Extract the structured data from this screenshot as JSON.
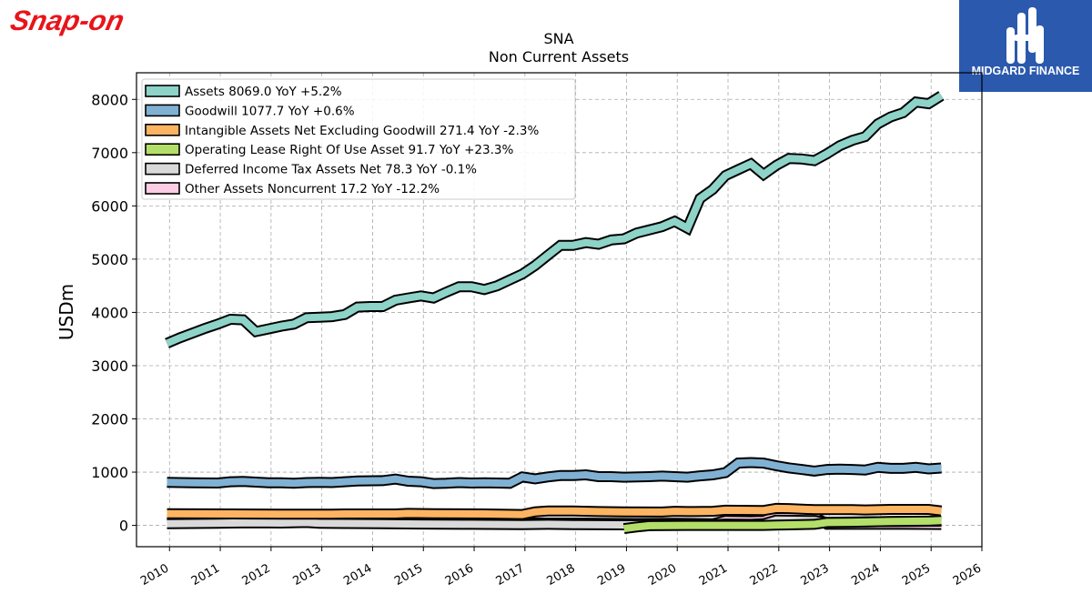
{
  "brand": {
    "left_logo_text": "Snap-on",
    "right_logo_text": "MIDGARD FINANCE",
    "left_logo_color": "#e8141b",
    "right_logo_bg": "#2b59ad"
  },
  "chart_data": {
    "type": "area",
    "title": "SNA",
    "subtitle": "Non Current  Assets",
    "ylabel": "USDm",
    "xlabel": "",
    "xlim": [
      2009.35,
      2026.0
    ],
    "ylim": [
      -400,
      8500
    ],
    "grid": true,
    "legend_position": "top-left",
    "x_ticks": [
      "2010",
      "2011",
      "2012",
      "2013",
      "2014",
      "2015",
      "2016",
      "2017",
      "2018",
      "2019",
      "2020",
      "2021",
      "2022",
      "2023",
      "2024",
      "2025",
      "2026"
    ],
    "y_ticks": [
      "0",
      "1000",
      "2000",
      "3000",
      "4000",
      "5000",
      "6000",
      "7000",
      "8000"
    ],
    "series": [
      {
        "name": "Assets  8069.0 YoY +5.2%",
        "color": "#8dd3c7",
        "points": [
          [
            2009.95,
            3420
          ],
          [
            2010.2,
            3520
          ],
          [
            2010.45,
            3610
          ],
          [
            2010.7,
            3700
          ],
          [
            2010.95,
            3780
          ],
          [
            2011.2,
            3870
          ],
          [
            2011.45,
            3860
          ],
          [
            2011.7,
            3640
          ],
          [
            2011.95,
            3690
          ],
          [
            2012.2,
            3740
          ],
          [
            2012.45,
            3780
          ],
          [
            2012.7,
            3900
          ],
          [
            2012.95,
            3910
          ],
          [
            2013.2,
            3920
          ],
          [
            2013.45,
            3960
          ],
          [
            2013.7,
            4100
          ],
          [
            2013.95,
            4110
          ],
          [
            2014.2,
            4110
          ],
          [
            2014.45,
            4230
          ],
          [
            2014.7,
            4270
          ],
          [
            2014.95,
            4310
          ],
          [
            2015.2,
            4270
          ],
          [
            2015.45,
            4380
          ],
          [
            2015.7,
            4480
          ],
          [
            2015.95,
            4480
          ],
          [
            2016.2,
            4430
          ],
          [
            2016.45,
            4500
          ],
          [
            2016.7,
            4610
          ],
          [
            2016.95,
            4720
          ],
          [
            2017.2,
            4880
          ],
          [
            2017.45,
            5070
          ],
          [
            2017.7,
            5260
          ],
          [
            2017.95,
            5260
          ],
          [
            2018.2,
            5310
          ],
          [
            2018.45,
            5280
          ],
          [
            2018.7,
            5360
          ],
          [
            2018.95,
            5380
          ],
          [
            2019.2,
            5490
          ],
          [
            2019.45,
            5550
          ],
          [
            2019.7,
            5610
          ],
          [
            2019.95,
            5710
          ],
          [
            2020.2,
            5580
          ],
          [
            2020.45,
            6140
          ],
          [
            2020.7,
            6310
          ],
          [
            2020.95,
            6570
          ],
          [
            2021.2,
            6680
          ],
          [
            2021.45,
            6790
          ],
          [
            2021.7,
            6590
          ],
          [
            2021.95,
            6760
          ],
          [
            2022.2,
            6890
          ],
          [
            2022.45,
            6880
          ],
          [
            2022.7,
            6850
          ],
          [
            2022.95,
            6980
          ],
          [
            2023.2,
            7130
          ],
          [
            2023.45,
            7230
          ],
          [
            2023.7,
            7300
          ],
          [
            2023.95,
            7540
          ],
          [
            2024.2,
            7670
          ],
          [
            2024.45,
            7750
          ],
          [
            2024.7,
            7950
          ],
          [
            2024.95,
            7920
          ],
          [
            2025.2,
            8069
          ]
        ]
      },
      {
        "name": "Goodwill  1077.7 YoY +0.6%",
        "color": "#80b1d3",
        "points": [
          [
            2009.95,
            810
          ],
          [
            2010.45,
            800
          ],
          [
            2010.95,
            795
          ],
          [
            2011.2,
            820
          ],
          [
            2011.45,
            825
          ],
          [
            2011.95,
            800
          ],
          [
            2012.2,
            800
          ],
          [
            2012.45,
            790
          ],
          [
            2012.7,
            805
          ],
          [
            2012.95,
            810
          ],
          [
            2013.2,
            805
          ],
          [
            2013.45,
            820
          ],
          [
            2013.7,
            835
          ],
          [
            2014.2,
            840
          ],
          [
            2014.45,
            870
          ],
          [
            2014.7,
            830
          ],
          [
            2014.95,
            820
          ],
          [
            2015.2,
            785
          ],
          [
            2015.45,
            790
          ],
          [
            2015.7,
            805
          ],
          [
            2015.95,
            795
          ],
          [
            2016.2,
            800
          ],
          [
            2016.45,
            795
          ],
          [
            2016.7,
            790
          ],
          [
            2016.95,
            910
          ],
          [
            2017.2,
            875
          ],
          [
            2017.45,
            910
          ],
          [
            2017.7,
            935
          ],
          [
            2017.95,
            935
          ],
          [
            2018.2,
            950
          ],
          [
            2018.45,
            915
          ],
          [
            2018.7,
            915
          ],
          [
            2018.95,
            905
          ],
          [
            2019.45,
            915
          ],
          [
            2019.7,
            925
          ],
          [
            2019.95,
            915
          ],
          [
            2020.2,
            905
          ],
          [
            2020.45,
            930
          ],
          [
            2020.7,
            950
          ],
          [
            2020.95,
            990
          ],
          [
            2021.2,
            1170
          ],
          [
            2021.45,
            1180
          ],
          [
            2021.7,
            1170
          ],
          [
            2021.95,
            1120
          ],
          [
            2022.2,
            1080
          ],
          [
            2022.45,
            1050
          ],
          [
            2022.7,
            1020
          ],
          [
            2022.95,
            1050
          ],
          [
            2023.2,
            1055
          ],
          [
            2023.45,
            1050
          ],
          [
            2023.7,
            1040
          ],
          [
            2023.95,
            1090
          ],
          [
            2024.2,
            1070
          ],
          [
            2024.45,
            1070
          ],
          [
            2024.7,
            1090
          ],
          [
            2024.95,
            1060
          ],
          [
            2025.2,
            1078
          ]
        ]
      },
      {
        "name": "Intangible Assets Net Excluding Goodwill  271.4 YoY -2.3%",
        "color": "#fdb462",
        "points": [
          [
            2009.95,
            220
          ],
          [
            2011.2,
            215
          ],
          [
            2012.2,
            210
          ],
          [
            2013.2,
            210
          ],
          [
            2013.45,
            215
          ],
          [
            2014.45,
            215
          ],
          [
            2014.7,
            225
          ],
          [
            2015.2,
            220
          ],
          [
            2016.2,
            215
          ],
          [
            2016.95,
            205
          ],
          [
            2017.2,
            255
          ],
          [
            2017.45,
            270
          ],
          [
            2017.95,
            270
          ],
          [
            2018.45,
            260
          ],
          [
            2018.95,
            255
          ],
          [
            2019.7,
            250
          ],
          [
            2019.95,
            265
          ],
          [
            2020.2,
            260
          ],
          [
            2020.7,
            265
          ],
          [
            2020.95,
            285
          ],
          [
            2021.7,
            280
          ],
          [
            2021.95,
            320
          ],
          [
            2022.2,
            315
          ],
          [
            2022.7,
            295
          ],
          [
            2023.45,
            295
          ],
          [
            2023.7,
            290
          ],
          [
            2024.2,
            300
          ],
          [
            2024.95,
            300
          ],
          [
            2025.2,
            271
          ]
        ]
      },
      {
        "name": "Operating Lease Right Of Use Asset  91.7 YoY +23.3%",
        "color": "#b3de69",
        "points": [
          [
            2018.95,
            -60
          ],
          [
            2019.2,
            -30
          ],
          [
            2019.45,
            -5
          ],
          [
            2020.2,
            0
          ],
          [
            2020.95,
            0
          ],
          [
            2021.7,
            0
          ],
          [
            2021.95,
            5
          ],
          [
            2022.2,
            10
          ],
          [
            2022.7,
            20
          ],
          [
            2022.95,
            55
          ],
          [
            2023.45,
            60
          ],
          [
            2024.2,
            75
          ],
          [
            2024.95,
            80
          ],
          [
            2025.2,
            92
          ]
        ]
      },
      {
        "name": "Deferred Income Tax Assets Net  78.3 YoY -0.1%",
        "color": "#d9d9d9",
        "points": [
          [
            2009.95,
            30
          ],
          [
            2010.95,
            40
          ],
          [
            2011.7,
            50
          ],
          [
            2012.2,
            45
          ],
          [
            2012.7,
            55
          ],
          [
            2012.95,
            40
          ],
          [
            2013.45,
            35
          ],
          [
            2014.2,
            30
          ],
          [
            2014.95,
            25
          ],
          [
            2015.95,
            20
          ],
          [
            2016.95,
            15
          ],
          [
            2017.45,
            20
          ],
          [
            2017.95,
            15
          ],
          [
            2018.95,
            10
          ],
          [
            2019.7,
            15
          ],
          [
            2020.2,
            20
          ],
          [
            2020.7,
            15
          ],
          [
            2020.95,
            25
          ],
          [
            2021.45,
            20
          ],
          [
            2021.7,
            30
          ],
          [
            2021.95,
            100
          ],
          [
            2022.7,
            90
          ],
          [
            2022.95,
            60
          ],
          [
            2023.95,
            70
          ],
          [
            2024.7,
            75
          ],
          [
            2025.2,
            78
          ]
        ]
      },
      {
        "name": "Other Assets Noncurrent  17.2 YoY -12.2%",
        "color": "#fccde5",
        "points": [
          [
            2009.95,
            40
          ],
          [
            2010.95,
            50
          ],
          [
            2011.45,
            70
          ],
          [
            2012.2,
            75
          ],
          [
            2012.7,
            90
          ],
          [
            2012.95,
            55
          ],
          [
            2013.45,
            50
          ],
          [
            2014.2,
            50
          ],
          [
            2014.7,
            45
          ],
          [
            2015.2,
            40
          ],
          [
            2016.2,
            40
          ],
          [
            2016.95,
            35
          ],
          [
            2017.2,
            45
          ],
          [
            2017.95,
            45
          ],
          [
            2018.45,
            40
          ],
          [
            2019.2,
            35
          ],
          [
            2019.95,
            40
          ],
          [
            2020.7,
            30
          ],
          [
            2020.95,
            90
          ],
          [
            2021.45,
            85
          ],
          [
            2021.7,
            90
          ],
          [
            2021.95,
            175
          ],
          [
            2022.7,
            170
          ],
          [
            2022.95,
            20
          ],
          [
            2023.45,
            20
          ],
          [
            2023.95,
            20
          ],
          [
            2024.45,
            20
          ],
          [
            2025.2,
            17
          ]
        ]
      }
    ]
  }
}
